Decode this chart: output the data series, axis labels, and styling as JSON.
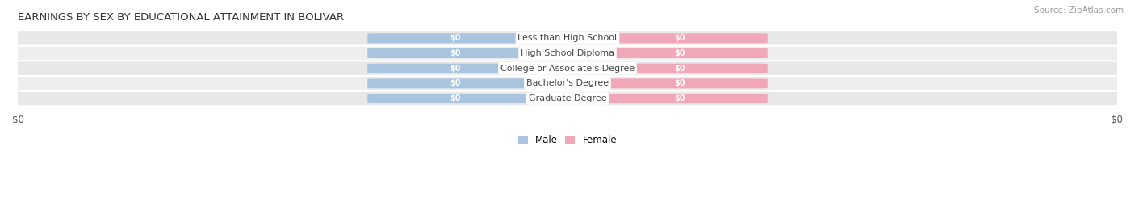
{
  "title": "EARNINGS BY SEX BY EDUCATIONAL ATTAINMENT IN BOLIVAR",
  "source": "Source: ZipAtlas.com",
  "categories": [
    "Less than High School",
    "High School Diploma",
    "College or Associate's Degree",
    "Bachelor's Degree",
    "Graduate Degree"
  ],
  "male_values": [
    0,
    0,
    0,
    0,
    0
  ],
  "female_values": [
    0,
    0,
    0,
    0,
    0
  ],
  "male_color": "#a8c4de",
  "female_color": "#f0a8b8",
  "bar_label_color": "#ffffff",
  "category_label_color": "#444444",
  "background_color": "#ffffff",
  "row_bg_light": "#e8e8e8",
  "row_bg_dark": "#d8d8d8",
  "xlabel_left": "$0",
  "xlabel_right": "$0",
  "title_fontsize": 9.5,
  "source_fontsize": 7.5,
  "bar_label_fontsize": 7,
  "category_fontsize": 8,
  "legend_fontsize": 8.5,
  "figsize": [
    14.06,
    2.69
  ],
  "dpi": 100
}
